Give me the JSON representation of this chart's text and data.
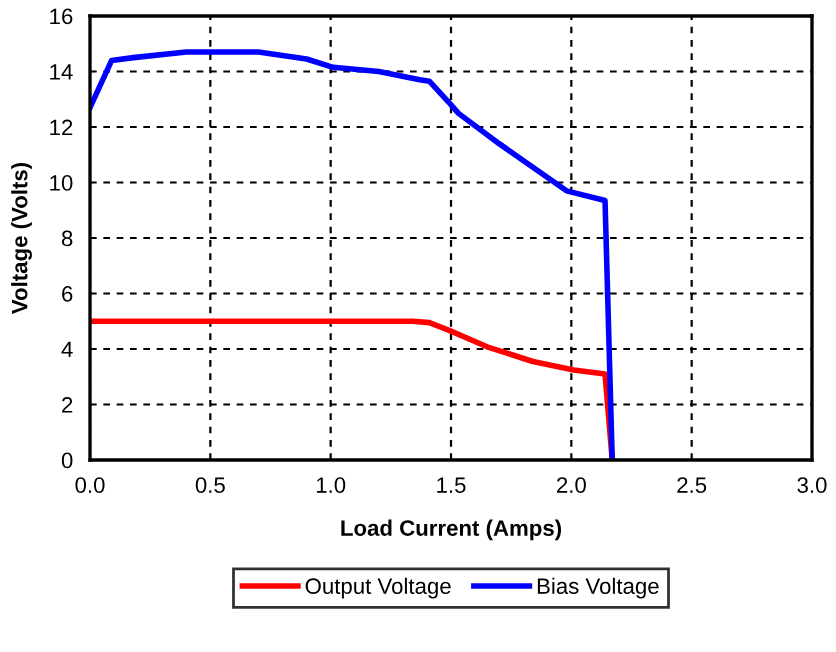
{
  "chart_data": {
    "type": "line",
    "xlabel": "Load Current (Amps)",
    "ylabel": "Voltage (Volts)",
    "xlim": [
      0,
      3
    ],
    "xticks": [
      {
        "value": 0,
        "label": "0.0"
      },
      {
        "value": 0.5,
        "label": "0.5"
      },
      {
        "value": 1,
        "label": "1.0"
      },
      {
        "value": 1.5,
        "label": "1.5"
      },
      {
        "value": 2,
        "label": "2.0"
      },
      {
        "value": 2.5,
        "label": "2.5"
      },
      {
        "value": 3,
        "label": "3.0"
      }
    ],
    "ylim": [
      0,
      16
    ],
    "yticks": [
      0,
      2,
      4,
      6,
      8,
      10,
      12,
      14,
      16
    ],
    "grid": true,
    "legend": "bottom",
    "marker": "none",
    "line_style": "solid",
    "series": [
      {
        "name": "Output Voltage",
        "color": "#ff0000",
        "x": [
          0,
          0.5,
          1.0,
          1.34,
          1.41,
          1.49,
          1.65,
          1.84,
          2.01,
          2.14,
          2.17
        ],
        "values": [
          5.0,
          5.0,
          5.0,
          5.0,
          4.95,
          4.68,
          4.08,
          3.55,
          3.24,
          3.1,
          0
        ]
      },
      {
        "name": "Bias Voltage",
        "color": "#0000ff",
        "x": [
          0,
          0.09,
          0.18,
          0.4,
          0.7,
          0.9,
          1.01,
          1.2,
          1.37,
          1.41,
          1.49,
          1.53,
          1.7,
          1.98,
          2.14,
          2.17
        ],
        "values": [
          12.7,
          14.4,
          14.5,
          14.7,
          14.7,
          14.45,
          14.15,
          14.0,
          13.7,
          13.65,
          12.9,
          12.5,
          11.4,
          9.7,
          9.35,
          0
        ]
      }
    ]
  }
}
